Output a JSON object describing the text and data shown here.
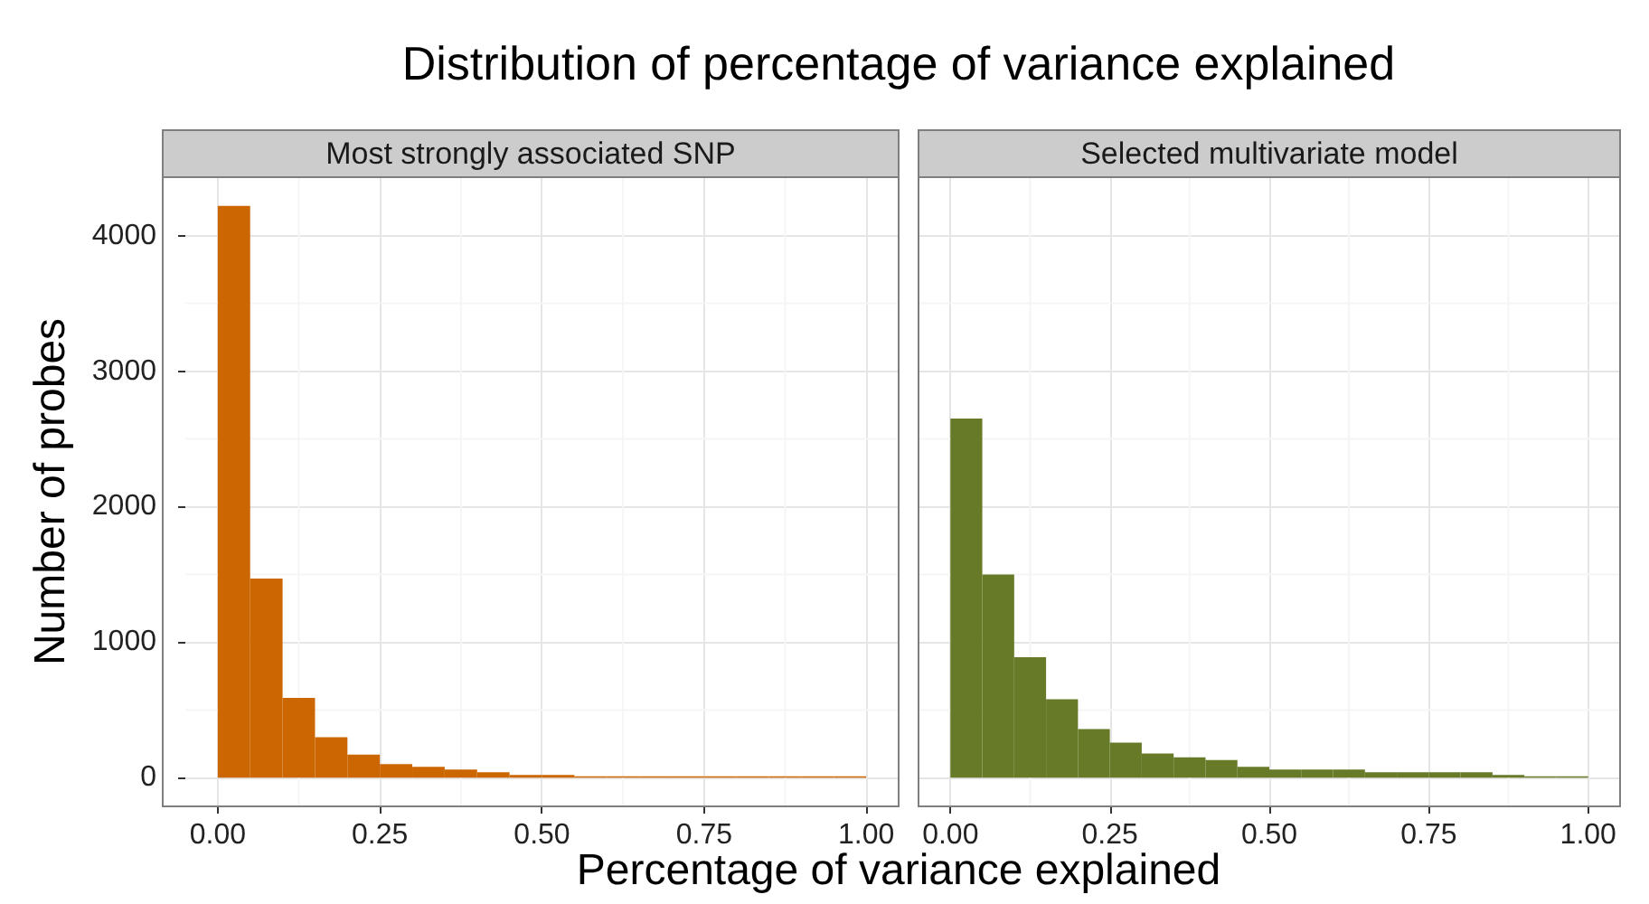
{
  "chart_data": [
    {
      "type": "histogram",
      "title": "Distribution of percentage of variance explained",
      "subtitle": "Most strongly associated SNP",
      "xlabel": "Percentage of variance explained",
      "ylabel": "Number of probes",
      "color": "#cc6600",
      "bins": [
        0,
        0.05,
        0.1,
        0.15,
        0.2,
        0.25,
        0.3,
        0.35,
        0.4,
        0.45,
        0.5,
        0.55,
        0.6,
        0.65,
        0.7,
        0.75,
        0.8,
        0.85,
        0.9,
        0.95,
        1
      ],
      "values": [
        4220,
        1470,
        590,
        300,
        170,
        100,
        80,
        60,
        40,
        20,
        20,
        10,
        10,
        10,
        10,
        10,
        10,
        10,
        10,
        10
      ],
      "xlim": [
        -0.05,
        1.05
      ],
      "xticks": [
        {
          "value": 0,
          "label": "0.00"
        },
        {
          "value": 0.25,
          "label": "0.25"
        },
        {
          "value": 0.5,
          "label": "0.50"
        },
        {
          "value": 0.75,
          "label": "0.75"
        },
        {
          "value": 1,
          "label": "1.00"
        }
      ],
      "ylim": [
        -211,
        4431
      ],
      "yticks": [
        0,
        1000,
        2000,
        3000,
        4000
      ],
      "grid": true
    },
    {
      "type": "histogram",
      "subtitle": "Selected multivariate model",
      "color": "#667a28",
      "bins": [
        0,
        0.05,
        0.1,
        0.15,
        0.2,
        0.25,
        0.3,
        0.35,
        0.4,
        0.45,
        0.5,
        0.55,
        0.6,
        0.65,
        0.7,
        0.75,
        0.8,
        0.85,
        0.9,
        0.95,
        1
      ],
      "values": [
        2650,
        1500,
        890,
        580,
        360,
        260,
        180,
        150,
        130,
        80,
        60,
        60,
        60,
        40,
        40,
        40,
        40,
        20,
        10,
        10
      ],
      "xlim": [
        -0.05,
        1.05
      ],
      "xticks": [
        {
          "value": 0,
          "label": "0.00"
        },
        {
          "value": 0.25,
          "label": "0.25"
        },
        {
          "value": 0.5,
          "label": "0.50"
        },
        {
          "value": 0.75,
          "label": "0.75"
        },
        {
          "value": 1,
          "label": "1.00"
        }
      ],
      "ylim": [
        -211,
        4431
      ],
      "yticks": [
        0,
        1000,
        2000,
        3000,
        4000
      ],
      "grid": true,
      "tick_labels": "x"
    }
  ]
}
